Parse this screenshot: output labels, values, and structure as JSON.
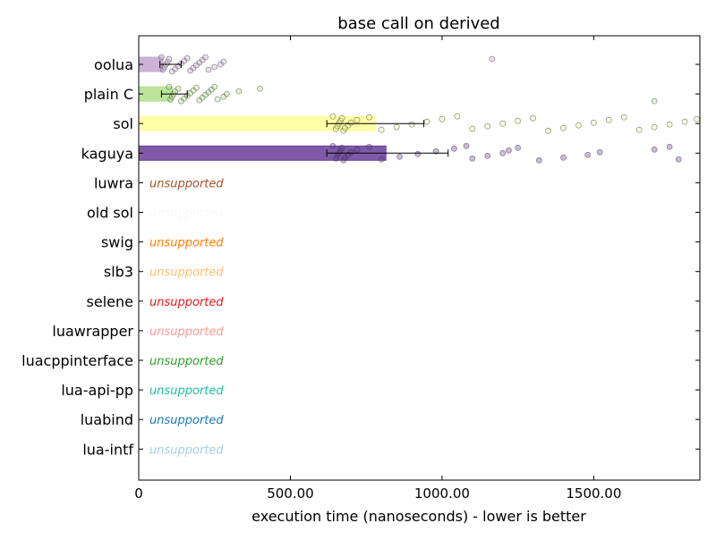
{
  "chart_data": {
    "type": "bar",
    "orientation": "horizontal",
    "title": "base call on derived",
    "xlabel": "execution time (nanoseconds) - lower is better",
    "ylabel": "",
    "xlim": [
      0,
      1850
    ],
    "x_ticks": [
      0,
      500,
      1000,
      1500
    ],
    "x_tick_labels": [
      "0",
      "500.00",
      "1000.00",
      "1500.00"
    ],
    "grid": false,
    "legend": "none",
    "unsupported_label": "unsupported",
    "categories": [
      "oolua",
      "plain C",
      "sol",
      "kaguya",
      "luwra",
      "old sol",
      "swig",
      "slb3",
      "selene",
      "luawrapper",
      "luacppinterface",
      "lua-api-pp",
      "luabind",
      "lua-intf"
    ],
    "values": [
      80,
      110,
      780,
      815,
      null,
      null,
      null,
      null,
      null,
      null,
      null,
      null,
      null,
      null
    ],
    "error_low": [
      70,
      75,
      620,
      620,
      null,
      null,
      null,
      null,
      null,
      null,
      null,
      null,
      null,
      null
    ],
    "error_high": [
      140,
      160,
      940,
      1020,
      null,
      null,
      null,
      null,
      null,
      null,
      null,
      null,
      null,
      null
    ],
    "supported": [
      true,
      true,
      true,
      true,
      false,
      false,
      false,
      false,
      false,
      false,
      false,
      false,
      false,
      false
    ],
    "colors": [
      "#c2a5cf",
      "#b2df8a",
      "#ffff99",
      "#6a3d9a",
      "#a6522b",
      "#f7f7f7",
      "#ff7f00",
      "#fdbf6f",
      "#e31a1c",
      "#fb9a99",
      "#33a02c",
      "#1fbfa7",
      "#1f78b4",
      "#a6cee3"
    ],
    "samples": [
      [
        75,
        80,
        85,
        90,
        95,
        100,
        110,
        120,
        130,
        140,
        150,
        160,
        170,
        180,
        190,
        200,
        210,
        220,
        230,
        250,
        270,
        280,
        1165
      ],
      [
        100,
        105,
        110,
        115,
        120,
        130,
        140,
        150,
        160,
        170,
        180,
        190,
        200,
        210,
        220,
        230,
        240,
        250,
        260,
        280,
        290,
        330,
        400,
        1700
      ],
      [
        640,
        650,
        655,
        660,
        665,
        670,
        675,
        680,
        690,
        700,
        720,
        760,
        800,
        850,
        900,
        950,
        1000,
        1050,
        1100,
        1150,
        1200,
        1250,
        1300,
        1350,
        1400,
        1450,
        1500,
        1550,
        1600,
        1650,
        1700,
        1750,
        1800,
        1840
      ],
      [
        640,
        650,
        655,
        660,
        665,
        670,
        675,
        680,
        690,
        700,
        720,
        760,
        800,
        860,
        920,
        980,
        1040,
        1080,
        1100,
        1150,
        1200,
        1220,
        1250,
        1320,
        1400,
        1480,
        1520,
        1700,
        1750,
        1780
      ]
    ]
  }
}
